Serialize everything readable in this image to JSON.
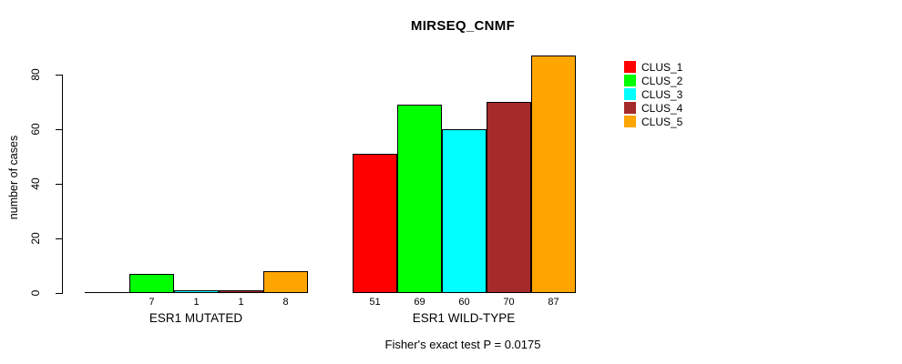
{
  "title": "MIRSEQ_CNMF",
  "y_axis": {
    "label": "number of cases",
    "ticks": [
      0,
      20,
      40,
      60,
      80
    ]
  },
  "footer": "Fisher's exact test P = 0.0175",
  "legend": {
    "items": [
      {
        "label": "CLUS_1",
        "color": "#FF0000"
      },
      {
        "label": "CLUS_2",
        "color": "#00FF00"
      },
      {
        "label": "CLUS_3",
        "color": "#00FFFF"
      },
      {
        "label": "CLUS_4",
        "color": "#A52A2A"
      },
      {
        "label": "CLUS_5",
        "color": "#FFA500"
      }
    ]
  },
  "chart_data": {
    "type": "bar",
    "title": "MIRSEQ_CNMF",
    "xlabel": "",
    "ylabel": "number of cases",
    "ylim": [
      0,
      87
    ],
    "grid": false,
    "legend_position": "top-right",
    "categories": [
      "ESR1 MUTATED",
      "ESR1 WILD-TYPE"
    ],
    "series": [
      {
        "name": "CLUS_1",
        "color": "#FF0000",
        "values": [
          0,
          51
        ]
      },
      {
        "name": "CLUS_2",
        "color": "#00FF00",
        "values": [
          7,
          69
        ]
      },
      {
        "name": "CLUS_3",
        "color": "#00FFFF",
        "values": [
          1,
          60
        ]
      },
      {
        "name": "CLUS_4",
        "color": "#A52A2A",
        "values": [
          1,
          70
        ]
      },
      {
        "name": "CLUS_5",
        "color": "#FFA500",
        "values": [
          8,
          87
        ]
      }
    ],
    "bar_labels": [
      [
        "",
        "7",
        "1",
        "1",
        "8"
      ],
      [
        "51",
        "69",
        "60",
        "70",
        "87"
      ]
    ],
    "annotation": "Fisher's exact test P = 0.0175"
  }
}
